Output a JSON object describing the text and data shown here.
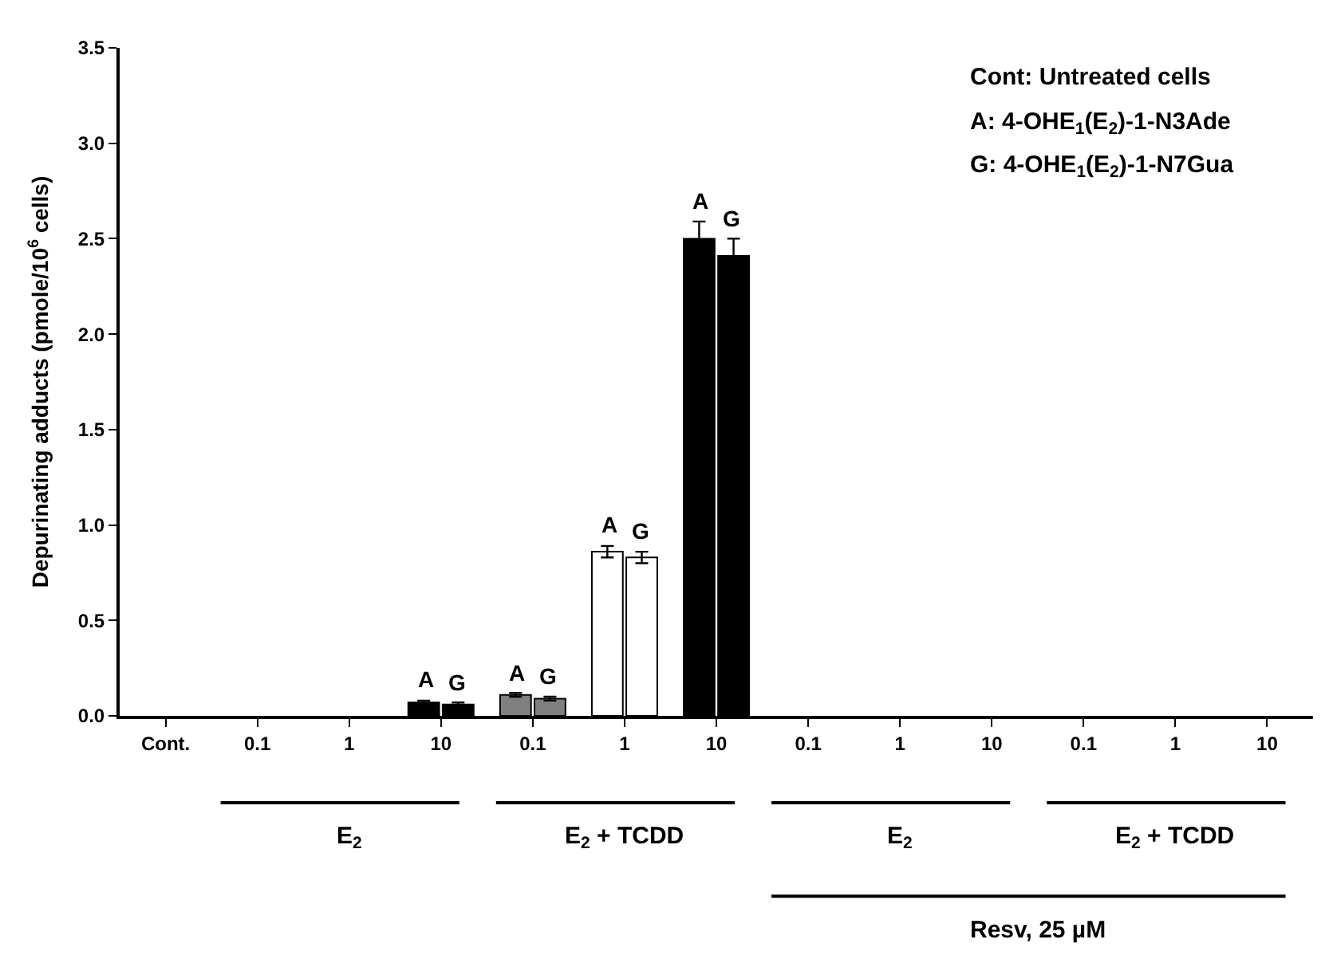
{
  "chart_data": {
    "type": "bar",
    "categories": [
      "Cont.",
      "0.1",
      "1",
      "10",
      "0.1",
      "1",
      "10",
      "0.1",
      "1",
      "10",
      "0.1",
      "1",
      "10"
    ],
    "ylabel": "Depurinating adducts (pmole/10$^{6}$ cells)",
    "series": [
      {
        "colors": [
          "#000000",
          "#000000",
          "#000000",
          "#000000",
          "#808080",
          "#ffffff",
          "#000000",
          "#000000",
          "#000000",
          "#000000",
          "#000000",
          "#000000",
          "#000000"
        ],
        "values": [
          null,
          null,
          null,
          0.07,
          0.11,
          0.86,
          2.5,
          null,
          null,
          null,
          null,
          null,
          null
        ],
        "errors": [
          null,
          null,
          null,
          0.01,
          0.01,
          0.03,
          0.09,
          null,
          null,
          null,
          null,
          null,
          null
        ],
        "value_labels": [
          null,
          null,
          null,
          "A",
          "A",
          "A",
          "A",
          null,
          null,
          null,
          null,
          null,
          null
        ]
      },
      {
        "colors": [
          "#000000",
          "#000000",
          "#000000",
          "#000000",
          "#808080",
          "#ffffff",
          "#000000",
          "#000000",
          "#000000",
          "#000000",
          "#000000",
          "#000000",
          "#000000"
        ],
        "values": [
          null,
          null,
          null,
          0.06,
          0.09,
          0.83,
          2.41,
          null,
          null,
          null,
          null,
          null,
          null
        ],
        "errors": [
          null,
          null,
          null,
          0.01,
          0.01,
          0.03,
          0.09,
          null,
          null,
          null,
          null,
          null,
          null
        ],
        "value_labels": [
          null,
          null,
          null,
          "G",
          "G",
          "G",
          "G",
          null,
          null,
          null,
          null,
          null,
          null
        ]
      }
    ],
    "ylim": [
      0,
      3.5
    ],
    "yticks": [
      {
        "value": 0,
        "label": "0.0"
      },
      0.5,
      {
        "value": 1,
        "label": "1.0"
      },
      1.5,
      {
        "value": 2,
        "label": "2.0"
      },
      2.5,
      {
        "value": 3,
        "label": "3.0"
      },
      3.5
    ],
    "annotations": [
      "Cont: Untreated cells",
      "A: 4-OHE$_{1}$(E$_{2}$)-1-N3Ade",
      "G: 4-OHE$_{1}$(E$_{2}$)-1-N7Gua",
      "E$_{2}$",
      "E$_{2}$ + TCDD",
      "E$_{2}$",
      "E$_{2}$ + TCDD",
      "Resv, 25 µM"
    ]
  }
}
